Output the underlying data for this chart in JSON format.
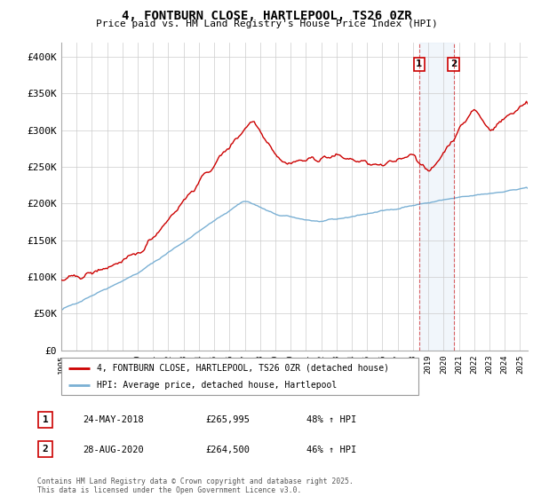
{
  "title": "4, FONTBURN CLOSE, HARTLEPOOL, TS26 0ZR",
  "subtitle": "Price paid vs. HM Land Registry's House Price Index (HPI)",
  "ylim": [
    0,
    420000
  ],
  "yticks": [
    0,
    50000,
    100000,
    150000,
    200000,
    250000,
    300000,
    350000,
    400000
  ],
  "ytick_labels": [
    "£0",
    "£50K",
    "£100K",
    "£150K",
    "£200K",
    "£250K",
    "£300K",
    "£350K",
    "£400K"
  ],
  "red_color": "#cc0000",
  "blue_color": "#7ab0d4",
  "shaded_color": "#d8e8f5",
  "legend_entries": [
    "4, FONTBURN CLOSE, HARTLEPOOL, TS26 0ZR (detached house)",
    "HPI: Average price, detached house, Hartlepool"
  ],
  "annotations": [
    {
      "label": "1",
      "date": "24-MAY-2018",
      "price": "£265,995",
      "pct": "48% ↑ HPI"
    },
    {
      "label": "2",
      "date": "28-AUG-2020",
      "price": "£264,500",
      "pct": "46% ↑ HPI"
    }
  ],
  "footer": "Contains HM Land Registry data © Crown copyright and database right 2025.\nThis data is licensed under the Open Government Licence v3.0.",
  "marker1_year": 2018.38,
  "marker2_year": 2020.65,
  "xlim_start": 1995,
  "xlim_end": 2025.5
}
